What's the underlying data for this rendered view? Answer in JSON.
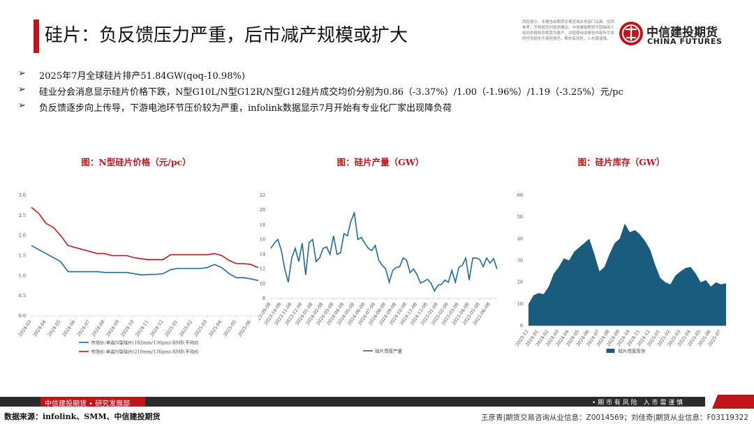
{
  "header": {
    "title": "硅片：负反馈压力严重，后市减产规模或扩大",
    "disclaimer": "风险提示：本报告由期货交易咨询业务部门出具，仅供参考，不构成任何投资建议。中信建投期货不因接收人收到本报告而视其为客户，对因使用本报告内容所引发的任何损失不承担责任。期市有风险，入市需谨慎。",
    "logo_cn": "中信建投期货",
    "logo_en": "CHINA FUTURES"
  },
  "bullets": [
    "2025年7月全球硅片排产51.84GW(qoq-10.98%)",
    "硅业分会消息显示硅片价格下跌，N型G10L/N型G12R/N型G12硅片成交均价分别为0.86（-3.37%）/1.00（-1.96%）/1.19（-3.25%）元/pc",
    "负反馈逐步向上传导，下游电池环节压价较为严重，infolink数据显示7月开始有专业化厂家出现降负荷"
  ],
  "chart_data": [
    {
      "type": "line",
      "title": "图：N型硅片价格（元/pc）",
      "categories": [
        "2024-03",
        null,
        "2024-04",
        null,
        "2024-05",
        null,
        "2024-06",
        null,
        "2024-07",
        null,
        "2024-08",
        null,
        "2024-09",
        null,
        "2024-10",
        null,
        "2024-11",
        null,
        "2024-12",
        null,
        "2025-01",
        null,
        "2025-02",
        null,
        "2025-03",
        null,
        "2025-04",
        null,
        "2025-05",
        null,
        "2025-06",
        null
      ],
      "series": [
        {
          "name": "市场价:单晶N型硅片(182mm/130μm):RMB:平均价",
          "color": "#1f6b94",
          "values": [
            1.75,
            1.65,
            1.55,
            1.45,
            1.35,
            1.1,
            1.1,
            1.1,
            1.1,
            1.1,
            1.08,
            1.08,
            1.08,
            1.08,
            1.05,
            1.02,
            1.03,
            1.03,
            1.05,
            1.15,
            1.18,
            1.18,
            1.18,
            1.18,
            1.2,
            1.28,
            1.2,
            1.05,
            0.95,
            0.95,
            0.92,
            0.88
          ]
        },
        {
          "name": "市场价:单晶N型硅片(210mm/130μm):RMB:平均价",
          "color": "#c0141b",
          "values": [
            2.7,
            2.55,
            2.3,
            2.2,
            2.0,
            1.75,
            1.7,
            1.65,
            1.6,
            1.55,
            1.55,
            1.5,
            1.5,
            1.5,
            1.45,
            1.42,
            1.4,
            1.4,
            1.4,
            1.52,
            1.52,
            1.52,
            1.52,
            1.52,
            1.52,
            1.55,
            1.5,
            1.38,
            1.3,
            1.3,
            1.28,
            1.2
          ]
        }
      ],
      "ylim": [
        0,
        3
      ],
      "yticks": [
        {
          "value": 0,
          "label": "0.0"
        },
        0.5,
        {
          "value": 1,
          "label": "1.0"
        },
        1.5,
        {
          "value": 2,
          "label": "2.0"
        },
        2.5,
        {
          "value": 3,
          "label": "3.0"
        }
      ]
    },
    {
      "type": "line",
      "title": "图：硅片产量（GW）",
      "categories": [
        "2023-09-08",
        null,
        null,
        "2023-10-08",
        null,
        null,
        "2023-11-08",
        null,
        null,
        "2023-12-08",
        null,
        null,
        "2024-01-08",
        null,
        null,
        "2024-02-08",
        null,
        null,
        "2024-03-08",
        null,
        null,
        "2024-04-08",
        null,
        null,
        "2024-05-08",
        null,
        null,
        "2024-06-08",
        null,
        null,
        "2024-07-08",
        null,
        null,
        "2024-08-08",
        null,
        null,
        "2024-09-08",
        null,
        null,
        "2024-10-08",
        null,
        null,
        "2024-11-08",
        null,
        null,
        "2024-12-08",
        null,
        null,
        "2025-01-08",
        null,
        null,
        "2025-02-08",
        null,
        null,
        "2025-03-08",
        null,
        null,
        "2025-04-08",
        null,
        null,
        "2025-05-08",
        null,
        null,
        "2025-06-08",
        null,
        null
      ],
      "series": [
        {
          "name": "硅片周度产量",
          "color": "#1f6b94",
          "values": [
            14.8,
            15.5,
            16,
            14.5,
            12,
            10.2,
            13.5,
            14.8,
            13,
            15.5,
            11.2,
            15.6,
            16,
            13,
            13.5,
            14.8,
            15,
            14,
            16.5,
            14,
            14.2,
            16.8,
            16.5,
            18.5,
            19.6,
            16,
            16.3,
            15.5,
            14.8,
            14.5,
            15.2,
            13.2,
            12.5,
            12,
            10.2,
            11.8,
            12.2,
            12.3,
            13.5,
            13.2,
            11.5,
            12,
            11.2,
            10.1,
            10.3,
            10.6,
            10.1,
            9,
            9.8,
            9.9,
            10.5,
            10.2,
            11.8,
            10.2,
            12.2,
            12.5,
            13.5,
            10.5,
            13.5,
            13.5,
            13.3,
            12.3,
            13.5,
            12.8,
            13.4,
            12
          ]
        }
      ],
      "ylim": [
        8,
        22
      ],
      "yticks": [
        8,
        10,
        12,
        14,
        16,
        18,
        20,
        22
      ]
    },
    {
      "type": "area",
      "title": "图：硅片库存（GW）",
      "categories": [
        "2023-12",
        null,
        "2024-01",
        null,
        "2024-02",
        null,
        "2024-03",
        null,
        "2024-04",
        null,
        "2024-05",
        null,
        "2024-06",
        null,
        "2024-07",
        null,
        "2024-08",
        null,
        "2024-09",
        null,
        "2024-10",
        null,
        "2024-11",
        null,
        "2024-12",
        null,
        "2025-01",
        null,
        "2025-02",
        null,
        "2025-03",
        null,
        "2025-04",
        null,
        "2025-05",
        null,
        "2025-06",
        null,
        "2025-07",
        null
      ],
      "series": [
        {
          "name": "硅片周度库存",
          "color": "#1a5c7d",
          "values": [
            10,
            14,
            15,
            14.5,
            18,
            24,
            27,
            31,
            30,
            34,
            36,
            38,
            40,
            33,
            25,
            27,
            33,
            38,
            40,
            47,
            43,
            44,
            42,
            39,
            35,
            28,
            22,
            20,
            19,
            23,
            25,
            26.5,
            27,
            24,
            20,
            21,
            18,
            20,
            19,
            19.5
          ]
        }
      ],
      "ylim": [
        0,
        60
      ],
      "yticks": [
        0,
        10,
        20,
        30,
        40,
        50,
        60
      ]
    }
  ],
  "footer": {
    "dept": "中信建投期货 • 研究发展部",
    "risk": "• 期 市 有 风 险　入 市 需 谨 慎",
    "source": "数据来源：infolink、SMM、中信建投期货",
    "analysts": "王彦青|期货交易咨询从业信息：Z0014569；刘佳奇|期货从业信息：F03119322"
  }
}
